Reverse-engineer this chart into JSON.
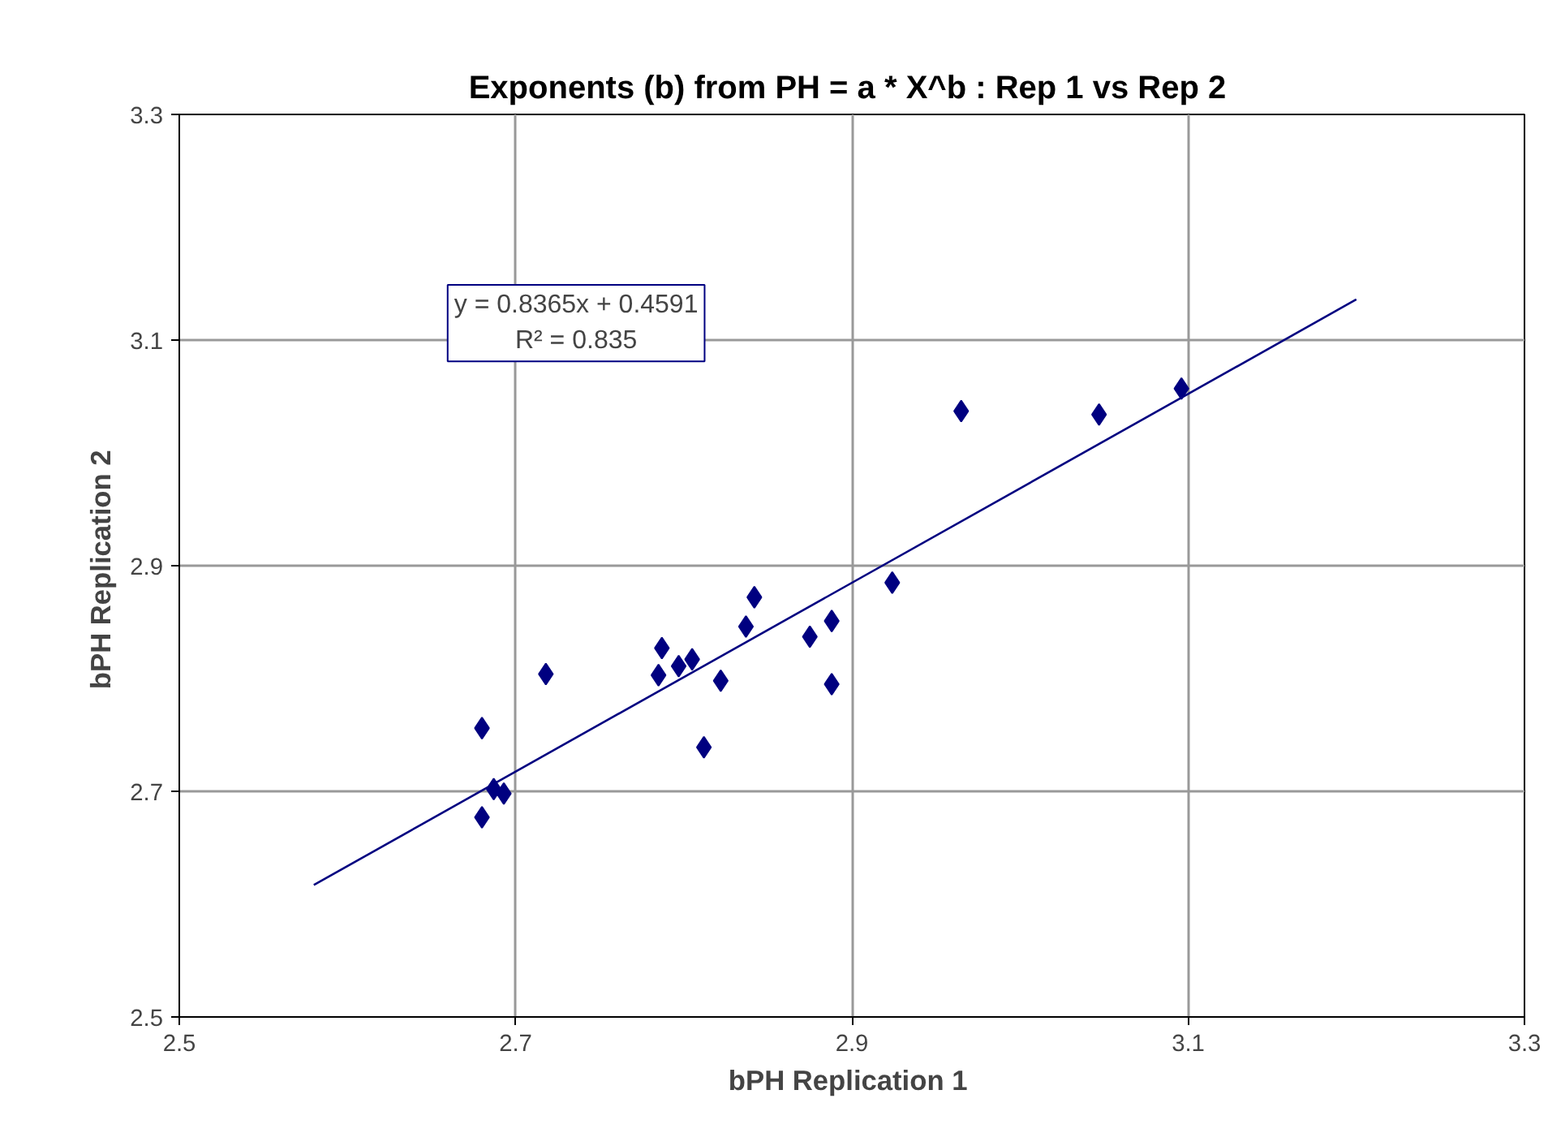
{
  "chart_data": {
    "type": "scatter",
    "title": "Exponents (b) from PH = a * X^b :  Rep 1 vs Rep 2",
    "xlabel": "bPH  Replication 1",
    "ylabel": "bPH  Replication 2",
    "xlim": [
      2.5,
      3.3
    ],
    "ylim": [
      2.5,
      3.3
    ],
    "xticks": [
      2.5,
      2.7,
      2.9,
      3.1,
      3.3
    ],
    "yticks": [
      2.5,
      2.7,
      2.9,
      3.1,
      3.3
    ],
    "grid": true,
    "series": [
      {
        "marker": "diamond",
        "color": "#000080",
        "x": [
          2.68,
          2.68,
          2.687,
          2.693,
          2.718,
          2.787,
          2.785,
          2.797,
          2.805,
          2.812,
          2.822,
          2.837,
          2.842,
          2.875,
          2.888,
          2.888,
          2.924,
          2.965,
          3.047,
          3.096
        ],
        "values": [
          2.756,
          2.677,
          2.702,
          2.698,
          2.804,
          2.827,
          2.803,
          2.811,
          2.817,
          2.739,
          2.798,
          2.846,
          2.872,
          2.837,
          2.851,
          2.795,
          2.885,
          3.037,
          3.034,
          3.057
        ]
      },
      {
        "type": "line",
        "color": "#000080",
        "x": [
          2.58,
          3.2
        ],
        "values": [
          2.617,
          3.136
        ]
      }
    ],
    "annotations": [
      "y = 0.8365x + 0.4591\nR² = 0.835"
    ]
  }
}
